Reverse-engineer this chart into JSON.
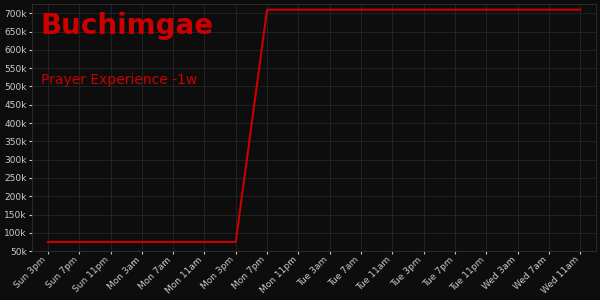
{
  "title": "Buchimgae",
  "subtitle": "Prayer Experience -1w",
  "background_color": "#0d0d0d",
  "grid_color": "#2a2a2a",
  "line_color": "#cc0000",
  "title_color": "#cc0000",
  "subtitle_color": "#cc0000",
  "tick_label_color": "#cccccc",
  "x_labels": [
    "Sun 3pm",
    "Sun 7pm",
    "Sun 11pm",
    "Mon 3am",
    "Mon 7am",
    "Mon 11am",
    "Mon 3pm",
    "Mon 7pm",
    "Mon 11pm",
    "Tue 3am",
    "Tue 7am",
    "Tue 11am",
    "Tue 3pm",
    "Tue 7pm",
    "Tue 11pm",
    "Wed 3am",
    "Wed 7am",
    "Wed 11am"
  ],
  "y_values": [
    75000,
    75000,
    75000,
    75000,
    75000,
    75000,
    75000,
    710000,
    710000,
    710000,
    710000,
    710000,
    710000,
    710000,
    710000,
    710000,
    710000,
    710000
  ],
  "ylim": [
    50000,
    725000
  ],
  "yticks": [
    50000,
    100000,
    150000,
    200000,
    250000,
    300000,
    350000,
    400000,
    450000,
    500000,
    550000,
    600000,
    650000,
    700000
  ],
  "title_fontsize": 20,
  "subtitle_fontsize": 10,
  "tick_fontsize": 6.5,
  "line_width": 1.5,
  "figsize": [
    6.0,
    3.0
  ],
  "dpi": 100
}
